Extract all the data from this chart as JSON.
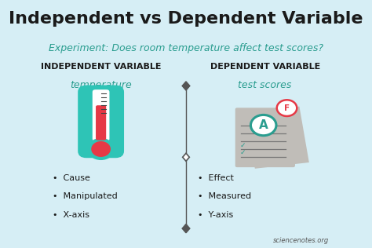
{
  "bg_color": "#d6eef5",
  "title": "Independent vs Dependent Variable",
  "title_fontsize": 16,
  "title_color": "#1a1a1a",
  "subtitle": "Experiment: Does room temperature affect test scores?",
  "subtitle_color": "#2a9d8f",
  "subtitle_fontsize": 9,
  "left_header": "INDEPENDENT VARIABLE",
  "right_header": "DEPENDENT VARIABLE",
  "header_color": "#1a1a1a",
  "header_fontsize": 8,
  "left_subheader": "temperature",
  "right_subheader": "test scores",
  "subheader_color": "#2a9d8f",
  "subheader_fontsize": 9,
  "left_bullets": [
    "Cause",
    "Manipulated",
    "X-axis"
  ],
  "right_bullets": [
    "Effect",
    "Measured",
    "Y-axis"
  ],
  "bullet_fontsize": 8,
  "bullet_color": "#1a1a1a",
  "watermark": "sciencenotes.org",
  "watermark_color": "#555555",
  "watermark_fontsize": 6,
  "divider_color": "#555555",
  "thermometer_body_color": "#2ec4b6",
  "thermometer_fluid_color": "#e63946",
  "paper_color": "#c0bdb8",
  "paper_line_color": "#555555",
  "grade_a_color": "#2a9d8f",
  "grade_f_color": "#e63946"
}
